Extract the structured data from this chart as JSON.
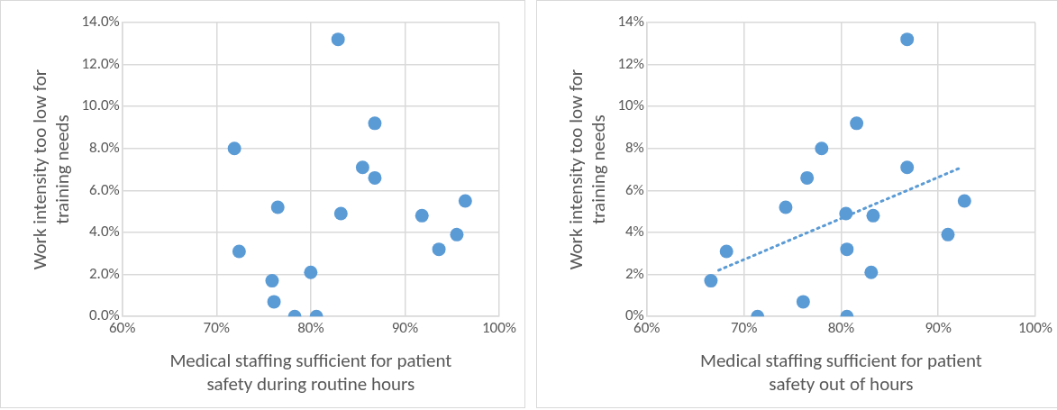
{
  "chart_data": [
    {
      "type": "scatter",
      "xlabel": "Medical staffing sufficient for patient safety during routine hours",
      "ylabel": "Work intensity too low for training needs",
      "xlim": [
        60,
        100
      ],
      "xticks": [
        {
          "value": 60,
          "label": "60%"
        },
        {
          "value": 70,
          "label": "70%"
        },
        {
          "value": 80,
          "label": "80%"
        },
        {
          "value": 90,
          "label": "90%"
        },
        {
          "value": 100,
          "label": "100%"
        }
      ],
      "ylim": [
        0,
        14
      ],
      "yticks": [
        {
          "value": 0,
          "label": "0.0%"
        },
        {
          "value": 2,
          "label": "2.0%"
        },
        {
          "value": 4,
          "label": "4.0%"
        },
        {
          "value": 6,
          "label": "6.0%"
        },
        {
          "value": 8,
          "label": "8.0%"
        },
        {
          "value": 10,
          "label": "10.0%"
        },
        {
          "value": 12,
          "label": "12.0%"
        },
        {
          "value": 14,
          "label": "14.0%"
        }
      ],
      "grid": true,
      "legend": false,
      "marker": "circle",
      "series": [
        {
          "color": "#5b9bd5",
          "x": [
            82.9,
            86.8,
            71.9,
            85.5,
            86.8,
            76.5,
            83.2,
            91.8,
            96.4,
            95.5,
            93.6,
            72.4,
            80.0,
            75.9,
            76.1,
            78.3,
            80.6
          ],
          "values": [
            13.2,
            9.2,
            8.0,
            7.1,
            6.6,
            5.2,
            4.9,
            4.8,
            5.5,
            3.9,
            3.2,
            3.1,
            2.1,
            1.7,
            0.7,
            0,
            0
          ]
        }
      ]
    },
    {
      "type": "scatter",
      "xlabel": "Medical staffing sufficient for patient safety out of hours",
      "ylabel": "Work intensity too low for training needs",
      "xlim": [
        60,
        100
      ],
      "xticks": [
        {
          "value": 60,
          "label": "60%"
        },
        {
          "value": 70,
          "label": "70%"
        },
        {
          "value": 80,
          "label": "80%"
        },
        {
          "value": 90,
          "label": "90%"
        },
        {
          "value": 100,
          "label": "100%"
        }
      ],
      "ylim": [
        0,
        14
      ],
      "yticks": [
        {
          "value": 0,
          "label": "0%"
        },
        {
          "value": 2,
          "label": "2%"
        },
        {
          "value": 4,
          "label": "4%"
        },
        {
          "value": 6,
          "label": "6%"
        },
        {
          "value": 8,
          "label": "8%"
        },
        {
          "value": 10,
          "label": "10%"
        },
        {
          "value": 12,
          "label": "12%"
        },
        {
          "value": 14,
          "label": "14%"
        }
      ],
      "grid": true,
      "legend": false,
      "marker": "circle",
      "series": [
        {
          "color": "#5b9bd5",
          "x": [
            86.8,
            81.6,
            78.0,
            86.8,
            76.5,
            74.3,
            92.7,
            80.5,
            83.3,
            91.0,
            68.2,
            80.6,
            83.1,
            66.6,
            76.1,
            71.4,
            80.6
          ],
          "values": [
            13.2,
            9.2,
            8.0,
            7.1,
            6.6,
            5.2,
            5.5,
            4.9,
            4.8,
            3.9,
            3.1,
            3.2,
            2.1,
            1.7,
            0.7,
            0,
            0
          ]
        },
        {
          "type": "line",
          "color": "#5b9bd5",
          "line_style": "dotted",
          "marker": "none",
          "x": [
            67.4,
            92.4
          ],
          "values": [
            2.2,
            7.1
          ]
        }
      ]
    }
  ]
}
